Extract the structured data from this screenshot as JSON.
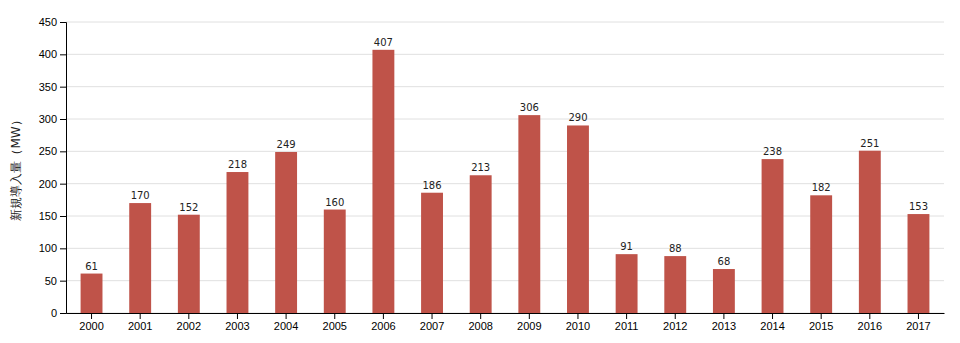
{
  "chart_data": {
    "type": "bar",
    "ylabel": "新規導入量（MW）",
    "categories": [
      "2000",
      "2001",
      "2002",
      "2003",
      "2004",
      "2005",
      "2006",
      "2007",
      "2008",
      "2009",
      "2010",
      "2011",
      "2012",
      "2013",
      "2014",
      "2015",
      "2016",
      "2017"
    ],
    "values": [
      61,
      170,
      152,
      218,
      249,
      160,
      407,
      186,
      213,
      306,
      290,
      91,
      88,
      68,
      238,
      182,
      251,
      153
    ],
    "color": "#bf5349",
    "ylim": [
      0,
      450
    ],
    "yticks": [
      0,
      50,
      100,
      150,
      200,
      250,
      300,
      350,
      400,
      450
    ],
    "grid": true,
    "data_labels": true
  }
}
